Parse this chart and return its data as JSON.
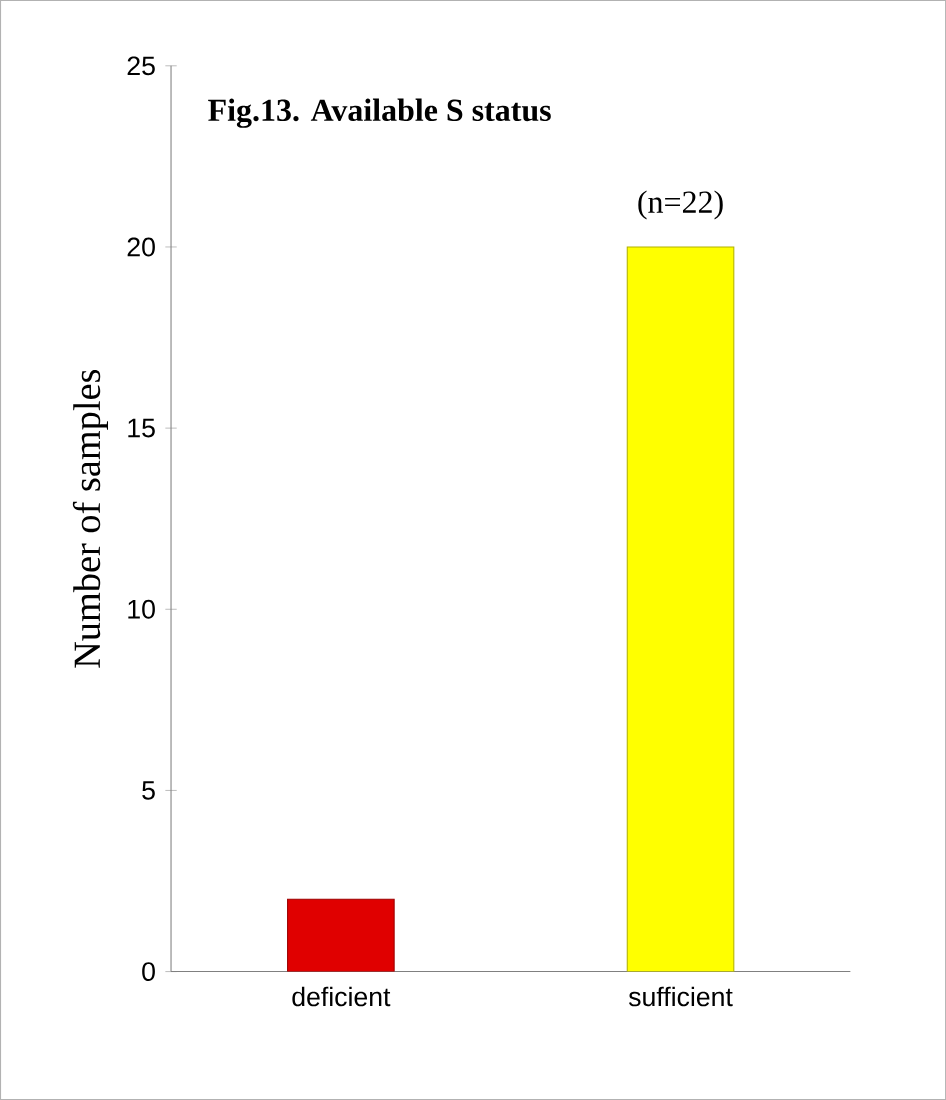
{
  "chart_data": {
    "type": "bar",
    "title": "Fig.13. Available S status",
    "annotations": [
      "(n=22)"
    ],
    "ylabel": "Number of samples",
    "categories": [
      "deficient",
      "sufficient"
    ],
    "values": [
      2,
      20
    ],
    "colors": [
      "#e00000",
      "#ffff00"
    ],
    "ylim": [
      0,
      25
    ],
    "yticks": [
      0,
      5,
      10,
      15,
      20,
      25
    ],
    "grid": false
  }
}
